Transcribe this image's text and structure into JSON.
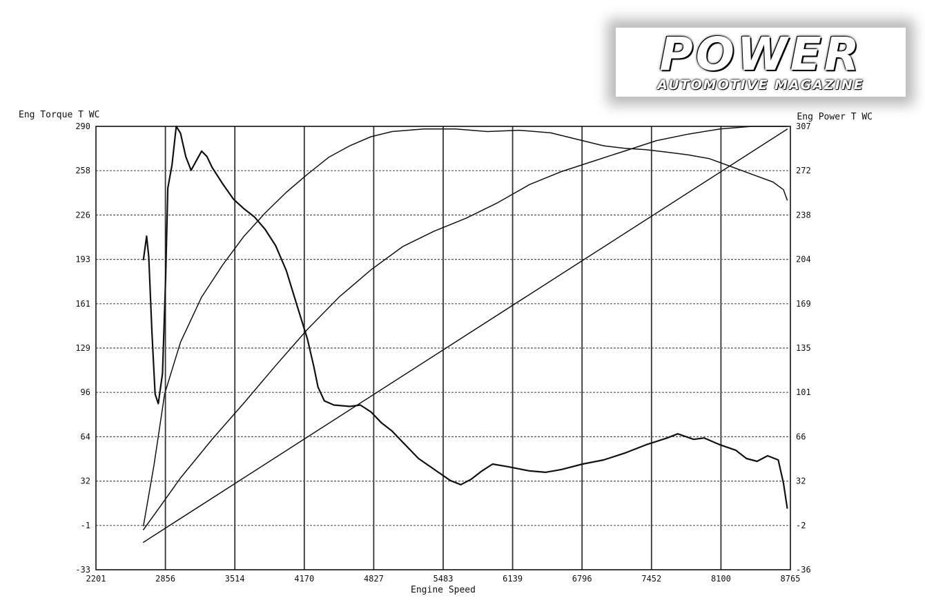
{
  "logo": {
    "main": "POWER",
    "sub": "AUTOMOTIVE MAGAZINE"
  },
  "chart_data": {
    "type": "line",
    "ylabel": "Eng Torque T WC",
    "y2label": "Eng Power T WC",
    "xlabel": "Engine Speed",
    "xlim": [
      2201,
      8765
    ],
    "ylim": [
      -33,
      290
    ],
    "y2lim": [
      -36,
      307
    ],
    "grid": true,
    "x_ticks": [
      "2201",
      "2856",
      "3514",
      "4170",
      "4827",
      "5483",
      "6139",
      "6796",
      "7452",
      "8100",
      "8765"
    ],
    "y_ticks": [
      "290",
      "258",
      "226",
      "193",
      "161",
      "129",
      "96",
      "64",
      "32",
      "-1",
      "-33"
    ],
    "y2_ticks": [
      "307",
      "272",
      "238",
      "204",
      "169",
      "135",
      "101",
      "66",
      "32",
      "-2",
      "-36"
    ],
    "series": [
      {
        "axis": "left",
        "points": [
          [
            2650,
            193
          ],
          [
            2680,
            210
          ],
          [
            2700,
            195
          ],
          [
            2730,
            140
          ],
          [
            2760,
            95
          ],
          [
            2790,
            88
          ],
          [
            2830,
            110
          ],
          [
            2860,
            180
          ],
          [
            2880,
            245
          ],
          [
            2920,
            262
          ],
          [
            2960,
            290
          ],
          [
            3000,
            285
          ],
          [
            3050,
            268
          ],
          [
            3100,
            258
          ],
          [
            3150,
            265
          ],
          [
            3200,
            272
          ],
          [
            3250,
            268
          ],
          [
            3300,
            260
          ],
          [
            3400,
            248
          ],
          [
            3500,
            237
          ],
          [
            3600,
            230
          ],
          [
            3700,
            224
          ],
          [
            3800,
            215
          ],
          [
            3900,
            203
          ],
          [
            4000,
            185
          ],
          [
            4100,
            160
          ],
          [
            4200,
            135
          ],
          [
            4260,
            115
          ],
          [
            4300,
            100
          ],
          [
            4360,
            90
          ],
          [
            4450,
            87
          ],
          [
            4600,
            86
          ],
          [
            4700,
            87
          ],
          [
            4800,
            82
          ],
          [
            4900,
            74
          ],
          [
            5000,
            68
          ],
          [
            5100,
            60
          ],
          [
            5250,
            48
          ],
          [
            5400,
            40
          ],
          [
            5550,
            32
          ],
          [
            5650,
            29
          ],
          [
            5750,
            33
          ],
          [
            5850,
            39
          ],
          [
            5950,
            44
          ],
          [
            6100,
            42
          ],
          [
            6300,
            39
          ],
          [
            6450,
            38
          ],
          [
            6600,
            40
          ],
          [
            6800,
            44
          ],
          [
            7000,
            47
          ],
          [
            7200,
            52
          ],
          [
            7400,
            58
          ],
          [
            7600,
            63
          ],
          [
            7700,
            66
          ],
          [
            7850,
            62
          ],
          [
            7950,
            63
          ],
          [
            8100,
            58
          ],
          [
            8250,
            54
          ],
          [
            8350,
            48
          ],
          [
            8450,
            46
          ],
          [
            8550,
            50
          ],
          [
            8650,
            47
          ],
          [
            8700,
            30
          ],
          [
            8735,
            12
          ]
        ]
      },
      {
        "axis": "right",
        "points": [
          [
            2650,
            -2
          ],
          [
            2750,
            45
          ],
          [
            2850,
            100
          ],
          [
            3000,
            140
          ],
          [
            3200,
            175
          ],
          [
            3400,
            200
          ],
          [
            3600,
            222
          ],
          [
            3800,
            240
          ],
          [
            4000,
            256
          ],
          [
            4200,
            270
          ],
          [
            4400,
            283
          ],
          [
            4600,
            292
          ],
          [
            4800,
            299
          ],
          [
            5000,
            303
          ],
          [
            5300,
            305
          ],
          [
            5600,
            305
          ],
          [
            5900,
            303
          ],
          [
            6200,
            304
          ],
          [
            6500,
            302
          ],
          [
            6800,
            296
          ],
          [
            7000,
            292
          ],
          [
            7200,
            290
          ],
          [
            7400,
            289
          ],
          [
            7600,
            287
          ],
          [
            7800,
            285
          ],
          [
            8000,
            282
          ],
          [
            8200,
            276
          ],
          [
            8400,
            270
          ],
          [
            8600,
            264
          ],
          [
            8700,
            258
          ],
          [
            8735,
            250
          ]
        ]
      },
      {
        "axis": "right",
        "points": [
          [
            2650,
            -5
          ],
          [
            2800,
            12
          ],
          [
            3000,
            35
          ],
          [
            3300,
            65
          ],
          [
            3600,
            93
          ],
          [
            3900,
            122
          ],
          [
            4200,
            150
          ],
          [
            4500,
            175
          ],
          [
            4800,
            196
          ],
          [
            5100,
            214
          ],
          [
            5400,
            226
          ],
          [
            5700,
            236
          ],
          [
            6000,
            248
          ],
          [
            6300,
            262
          ],
          [
            6600,
            272
          ],
          [
            6900,
            280
          ],
          [
            7200,
            288
          ],
          [
            7500,
            296
          ],
          [
            7800,
            301
          ],
          [
            8100,
            305
          ],
          [
            8400,
            307
          ],
          [
            8735,
            307
          ]
        ]
      },
      {
        "axis": "left",
        "points": [
          [
            2650,
            -13
          ],
          [
            8735,
            288
          ]
        ]
      }
    ]
  }
}
